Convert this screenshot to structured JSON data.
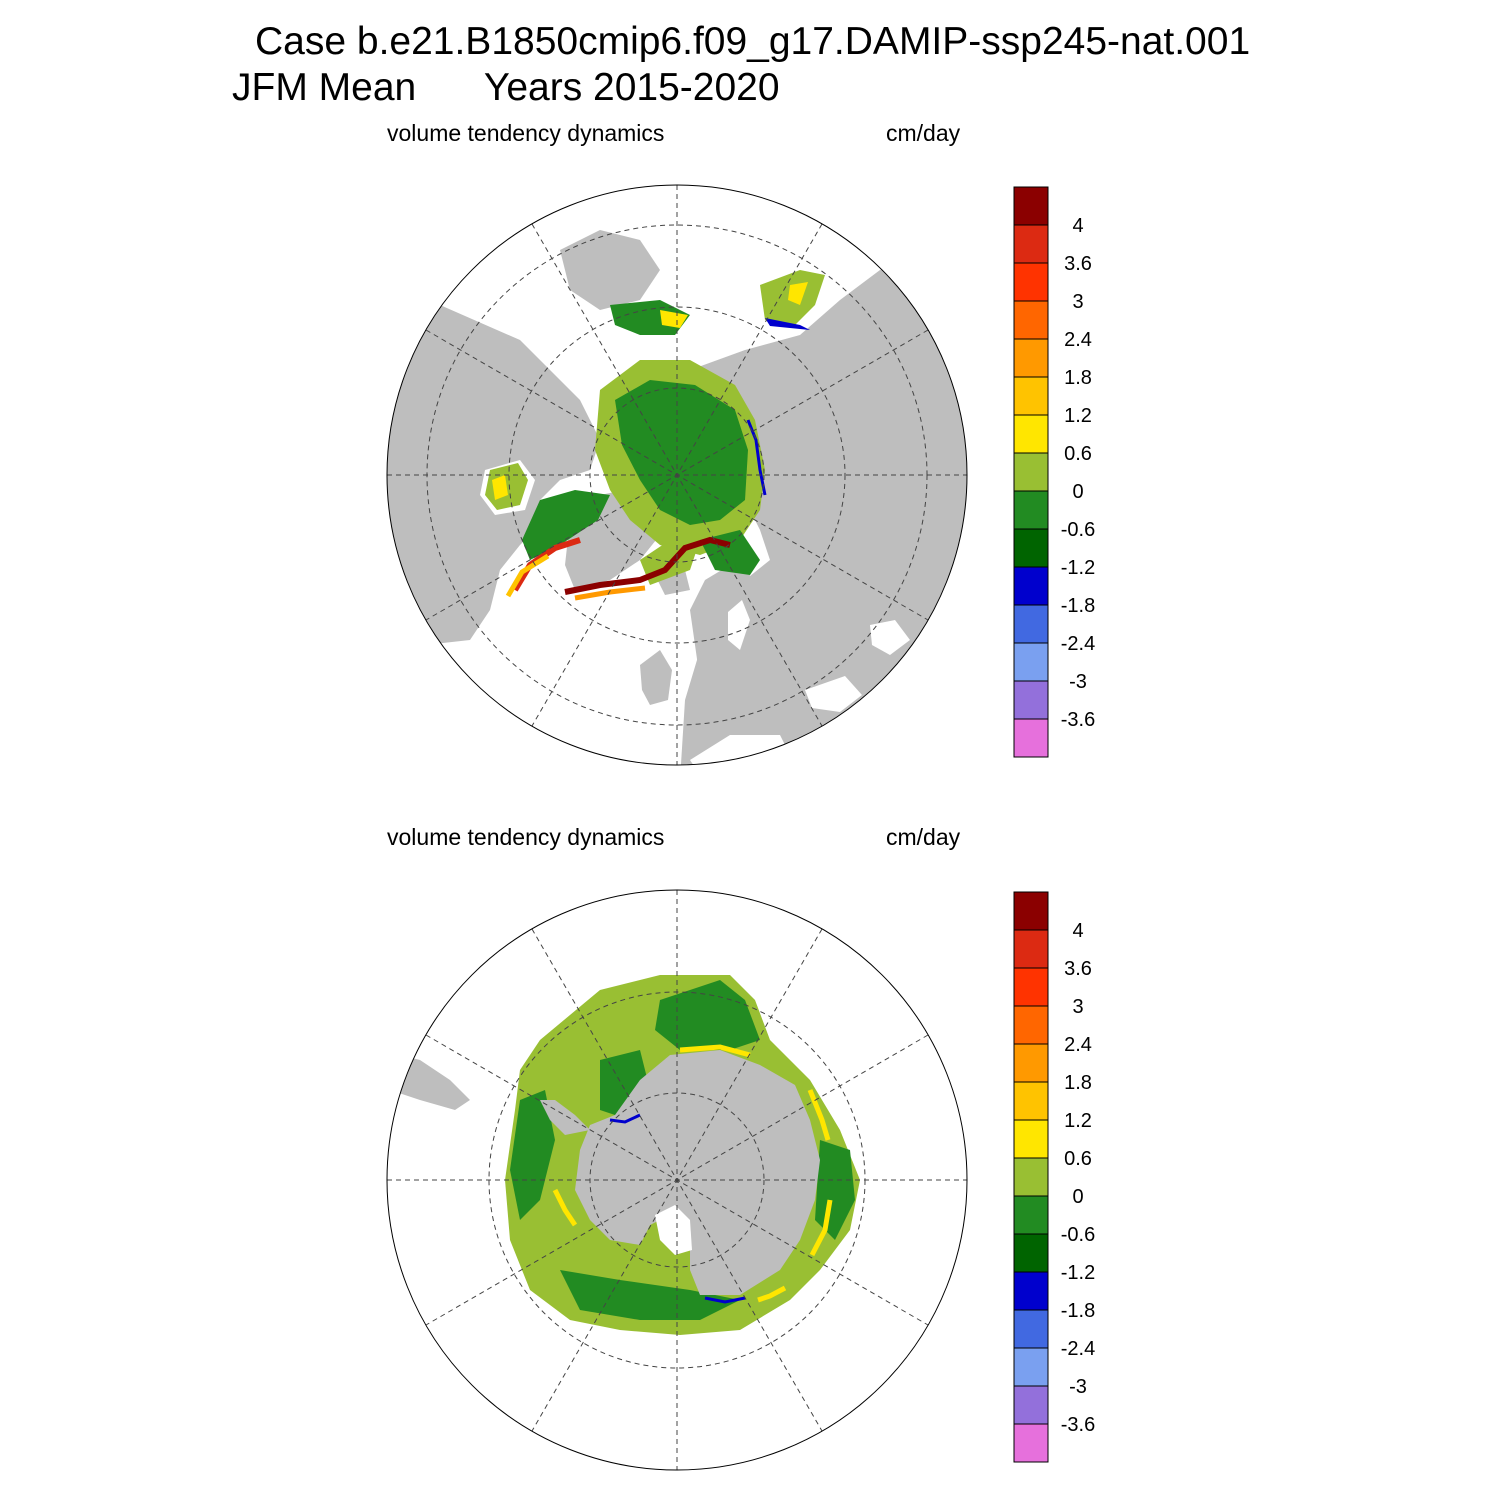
{
  "title": {
    "case_line": "Case b.e21.B1850cmip6.f09_g17.DAMIP-ssp245-nat.001",
    "season": "JFM Mean",
    "years": "Years 2015-2020"
  },
  "panels": [
    {
      "id": "north",
      "hemisphere": "Northern Hemisphere polar stereographic",
      "left_label": "volume tendency dynamics",
      "right_label": "cm/day"
    },
    {
      "id": "south",
      "hemisphere": "Southern Hemisphere polar stereographic",
      "left_label": "volume tendency dynamics",
      "right_label": "cm/day"
    }
  ],
  "colorbar": {
    "levels": [
      "4",
      "3.6",
      "3",
      "2.4",
      "1.8",
      "1.2",
      "0.6",
      "0",
      "-0.6",
      "-1.2",
      "-1.8",
      "-2.4",
      "-3",
      "-3.6"
    ],
    "colors": [
      "#8b0000",
      "#dc2a12",
      "#ff3300",
      "#ff6600",
      "#ff9900",
      "#ffc300",
      "#ffe600",
      "#99bf33",
      "#228b22",
      "#006400",
      "#0000cd",
      "#4169e1",
      "#7aa0f0",
      "#9370db",
      "#e670dc"
    ]
  },
  "map_colors": {
    "land": "#bebebe",
    "ocean": "#ffffff",
    "grid": "#444444"
  }
}
